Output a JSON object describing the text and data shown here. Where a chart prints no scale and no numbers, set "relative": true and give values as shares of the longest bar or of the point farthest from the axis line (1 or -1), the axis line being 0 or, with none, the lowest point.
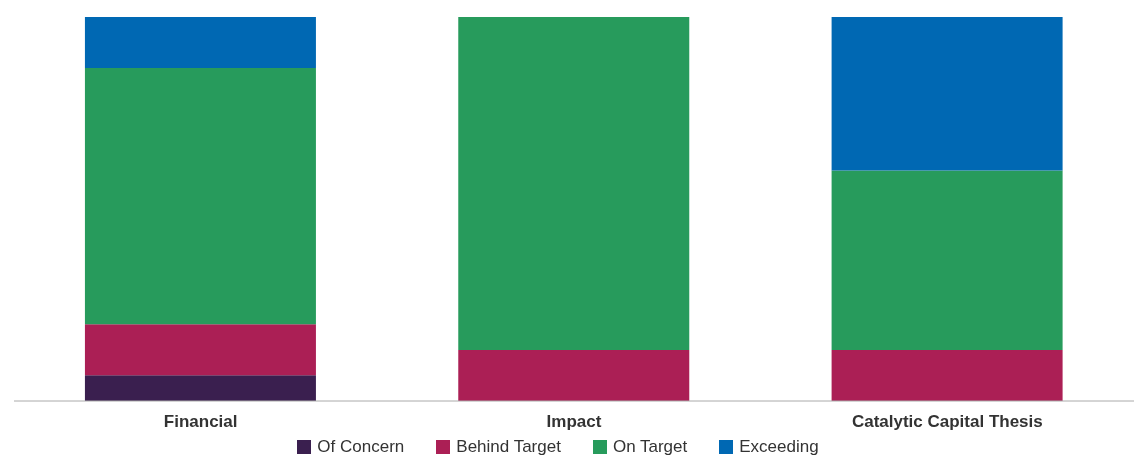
{
  "chart_data": {
    "type": "bar",
    "relative": true,
    "stacked": true,
    "legend": "bottom",
    "categories": [
      "Financial",
      "Impact",
      "Catalytic Capital Thesis"
    ],
    "series": [
      {
        "name": "Of Concern",
        "color": "#3a1f4f",
        "values": [
          0.067,
          0,
          0
        ]
      },
      {
        "name": "Behind Target",
        "color": "#ab1f55",
        "values": [
          0.133,
          0.133,
          0.133
        ]
      },
      {
        "name": "On Target",
        "color": "#279b5c",
        "values": [
          0.667,
          0.867,
          0.467
        ]
      },
      {
        "name": "Exceeding",
        "color": "#0068b3",
        "values": [
          0.133,
          0,
          0.4
        ]
      }
    ]
  }
}
